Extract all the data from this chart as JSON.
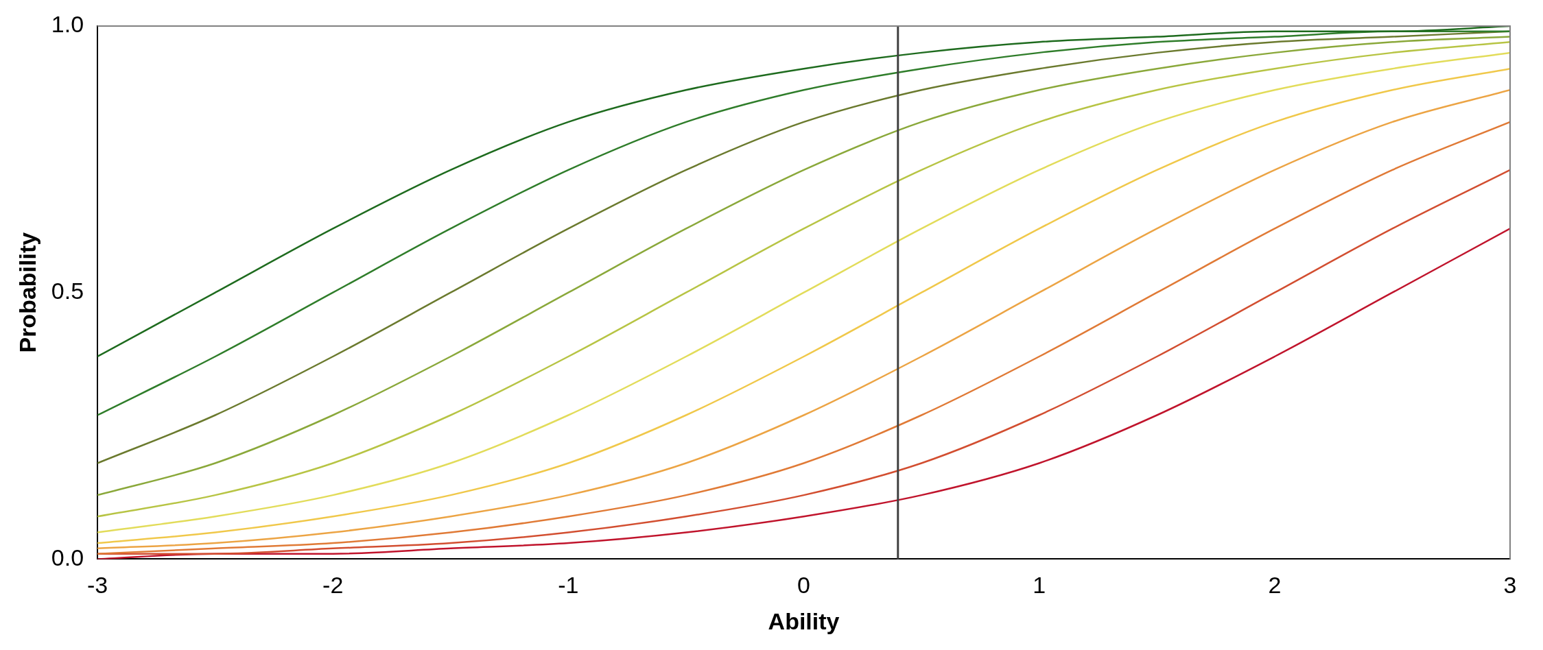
{
  "chart_data": {
    "type": "line",
    "xlabel": "Ability",
    "ylabel": "Probability",
    "x": [
      -3,
      -2.5,
      -2,
      -1.5,
      -1,
      -0.5,
      0,
      0.5,
      1,
      1.5,
      2,
      2.5,
      3
    ],
    "xlim": [
      -3,
      3
    ],
    "xticks": [
      -3,
      -2,
      -1,
      0,
      1,
      2,
      3
    ],
    "ylim": [
      0,
      1
    ],
    "yticks": [
      {
        "value": 0,
        "label": "0.0"
      },
      {
        "value": 0.5,
        "label": "0.5"
      },
      {
        "value": 1,
        "label": "1.0"
      }
    ],
    "grid": false,
    "legend": false,
    "marker": "none",
    "line_style": "solid",
    "ref_lines": [
      {
        "axis": "x",
        "value": 0.4,
        "color": "#404040"
      }
    ],
    "series": [
      {
        "color": "#1e6b1e",
        "values": [
          0.38,
          0.5,
          0.62,
          0.73,
          0.82,
          0.88,
          0.92,
          0.95,
          0.97,
          0.98,
          0.99,
          0.99,
          1.0
        ]
      },
      {
        "color": "#2f7d2a",
        "values": [
          0.27,
          0.38,
          0.5,
          0.62,
          0.73,
          0.82,
          0.88,
          0.92,
          0.95,
          0.97,
          0.98,
          0.99,
          0.99
        ]
      },
      {
        "color": "#6b7a2e",
        "values": [
          0.18,
          0.27,
          0.38,
          0.5,
          0.62,
          0.73,
          0.82,
          0.88,
          0.92,
          0.95,
          0.97,
          0.98,
          0.99
        ]
      },
      {
        "color": "#8aa83a",
        "values": [
          0.12,
          0.18,
          0.27,
          0.38,
          0.5,
          0.62,
          0.73,
          0.82,
          0.88,
          0.92,
          0.95,
          0.97,
          0.98
        ]
      },
      {
        "color": "#b7c444",
        "values": [
          0.08,
          0.12,
          0.18,
          0.27,
          0.38,
          0.5,
          0.62,
          0.73,
          0.82,
          0.88,
          0.92,
          0.95,
          0.97
        ]
      },
      {
        "color": "#e2dc5a",
        "values": [
          0.05,
          0.08,
          0.12,
          0.18,
          0.27,
          0.38,
          0.5,
          0.62,
          0.73,
          0.82,
          0.88,
          0.92,
          0.95
        ]
      },
      {
        "color": "#f0c84a",
        "values": [
          0.03,
          0.05,
          0.08,
          0.12,
          0.18,
          0.27,
          0.38,
          0.5,
          0.62,
          0.73,
          0.82,
          0.88,
          0.92
        ]
      },
      {
        "color": "#eca444",
        "values": [
          0.02,
          0.03,
          0.05,
          0.08,
          0.12,
          0.18,
          0.27,
          0.38,
          0.5,
          0.62,
          0.73,
          0.82,
          0.88
        ]
      },
      {
        "color": "#e07a36",
        "values": [
          0.01,
          0.02,
          0.03,
          0.05,
          0.08,
          0.12,
          0.18,
          0.27,
          0.38,
          0.5,
          0.62,
          0.73,
          0.82
        ]
      },
      {
        "color": "#d24e30",
        "values": [
          0.01,
          0.01,
          0.02,
          0.03,
          0.05,
          0.08,
          0.12,
          0.18,
          0.27,
          0.38,
          0.5,
          0.62,
          0.73
        ]
      },
      {
        "color": "#c0142c",
        "values": [
          0.0,
          0.01,
          0.01,
          0.02,
          0.03,
          0.05,
          0.08,
          0.12,
          0.18,
          0.27,
          0.38,
          0.5,
          0.62
        ]
      }
    ]
  }
}
